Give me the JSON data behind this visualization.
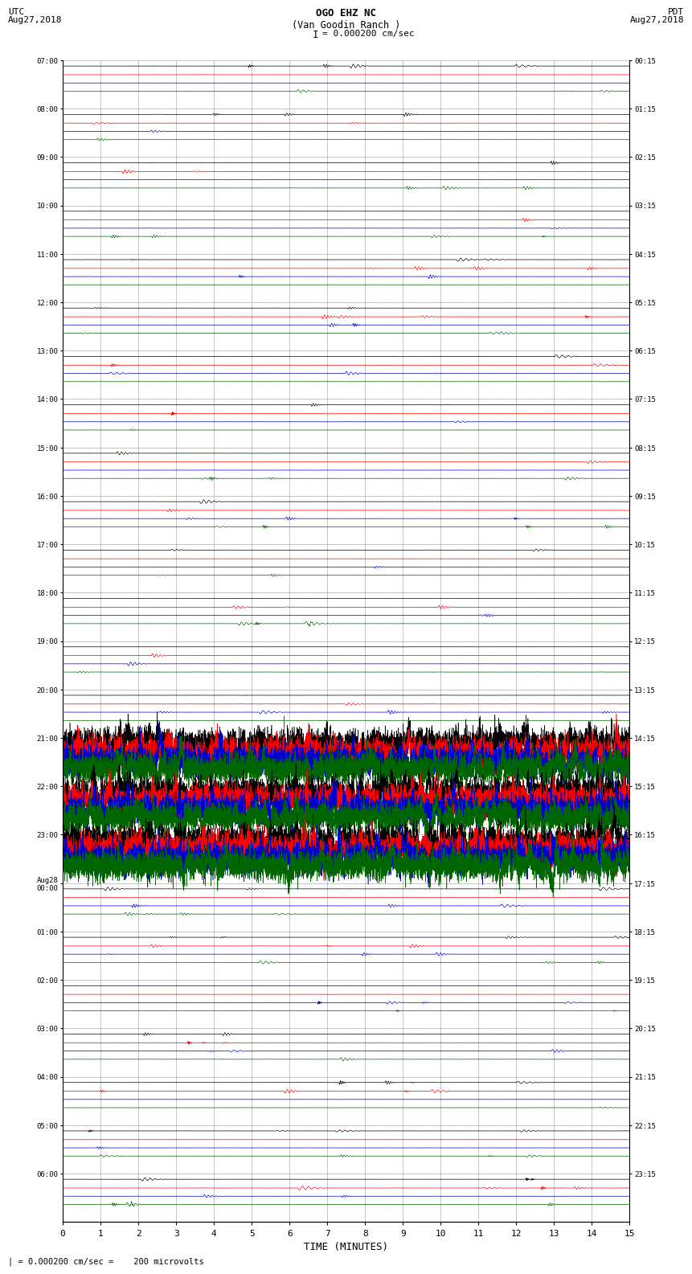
{
  "title_line1": "OGO EHZ NC",
  "title_line2": "(Van Goodin Ranch )",
  "scale_label": "I = 0.000200 cm/sec",
  "left_date_label": "UTC\nAug27,2018",
  "right_date_label": "PDT\nAug27,2018",
  "bottom_label": "TIME (MINUTES)",
  "footnote": "| = 0.000200 cm/sec =    200 microvolts",
  "xlim": [
    0,
    15
  ],
  "xticks": [
    0,
    1,
    2,
    3,
    4,
    5,
    6,
    7,
    8,
    9,
    10,
    11,
    12,
    13,
    14,
    15
  ],
  "left_times": [
    "07:00",
    "08:00",
    "09:00",
    "10:00",
    "11:00",
    "12:00",
    "13:00",
    "14:00",
    "15:00",
    "16:00",
    "17:00",
    "18:00",
    "19:00",
    "20:00",
    "21:00",
    "22:00",
    "23:00",
    "Aug28\n00:00",
    "01:00",
    "02:00",
    "03:00",
    "04:00",
    "05:00",
    "06:00"
  ],
  "right_times": [
    "00:15",
    "01:15",
    "02:15",
    "03:15",
    "04:15",
    "05:15",
    "06:15",
    "07:15",
    "08:15",
    "09:15",
    "10:15",
    "11:15",
    "12:15",
    "13:15",
    "14:15",
    "15:15",
    "16:15",
    "17:15",
    "18:15",
    "19:15",
    "20:15",
    "21:15",
    "22:15",
    "23:15"
  ],
  "n_rows": 24,
  "bg_color": "#ffffff",
  "grid_color": "#999999",
  "trace_colors": [
    "#000000",
    "#ff0000",
    "#0000cc",
    "#006600"
  ],
  "noisy_row_indices": [
    14,
    15,
    16
  ],
  "figure_width": 8.5,
  "figure_height": 16.13
}
